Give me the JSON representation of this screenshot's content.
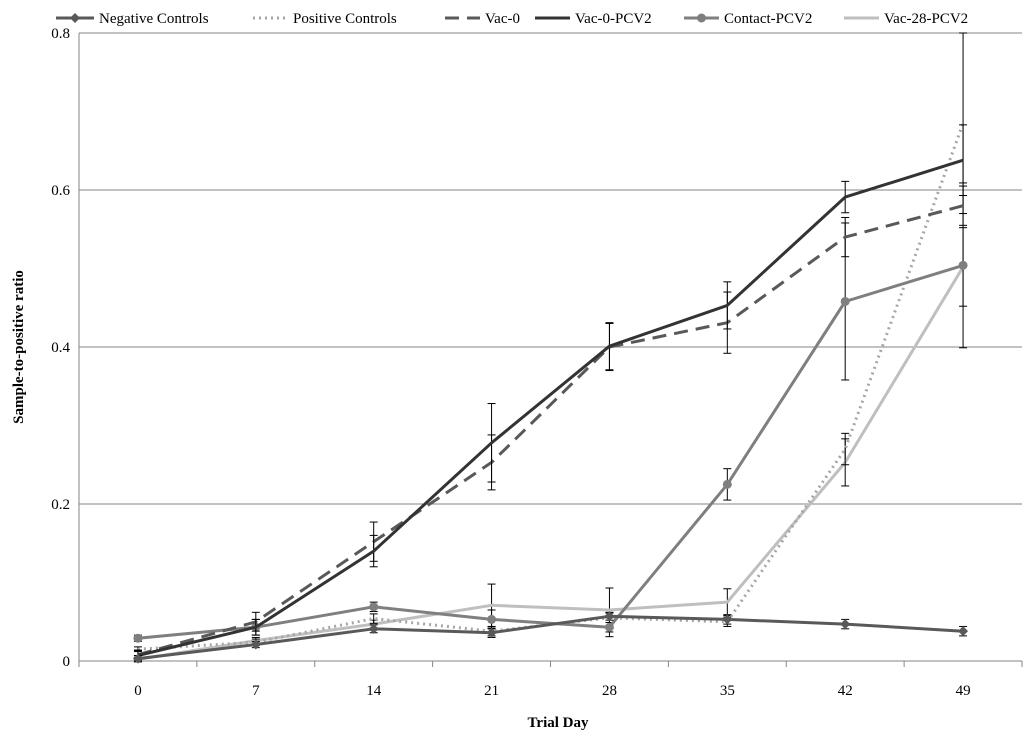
{
  "chart_data": {
    "type": "line",
    "title": "",
    "xlabel": "Trial Day",
    "ylabel": "Sample-to-positive ratio",
    "x": [
      0,
      7,
      14,
      21,
      28,
      35,
      42,
      49
    ],
    "x_tick_labels": [
      "0",
      "7",
      "14",
      "21",
      "28",
      "35",
      "42",
      "49"
    ],
    "y_tick_labels": [
      "0",
      "0.2",
      "0.4",
      "0.6",
      "0.8"
    ],
    "ylim": [
      0,
      0.8
    ],
    "grid": "horizontal",
    "legend_position": "top",
    "series": [
      {
        "name": "Negative Controls",
        "color": "#595959",
        "style": "solid-diamond",
        "values": [
          0.003,
          0.021,
          0.041,
          0.036,
          0.057,
          0.053,
          0.047,
          0.038
        ],
        "errors": [
          0.004,
          0.004,
          0.005,
          0.006,
          0.005,
          0.006,
          0.006,
          0.006
        ]
      },
      {
        "name": "Positive Controls",
        "color": "#a6a6a6",
        "style": "dotted",
        "values": [
          0.015,
          0.024,
          0.054,
          0.038,
          0.055,
          0.05,
          0.27,
          0.685
        ],
        "errors": [
          0.003,
          0.004,
          0.006,
          0.006,
          0.006,
          0.006,
          0.02,
          0.115
        ]
      },
      {
        "name": "Vac-0",
        "color": "#595959",
        "style": "dashed",
        "values": [
          0.008,
          0.05,
          0.152,
          0.253,
          0.4,
          0.431,
          0.54,
          0.58
        ],
        "errors": [
          0.006,
          0.012,
          0.025,
          0.035,
          0.03,
          0.039,
          0.025,
          0.025
        ]
      },
      {
        "name": "Vac-0-PCV2",
        "color": "#333333",
        "style": "solid",
        "values": [
          0.007,
          0.043,
          0.14,
          0.278,
          0.401,
          0.453,
          0.591,
          0.638
        ],
        "errors": [
          0.006,
          0.01,
          0.02,
          0.05,
          0.03,
          0.03,
          0.02,
          0.045
        ]
      },
      {
        "name": "Contact-PCV2",
        "color": "#7f7f7f",
        "style": "solid-circle",
        "values": [
          0.029,
          0.043,
          0.069,
          0.053,
          0.043,
          0.225,
          0.458,
          0.504
        ],
        "errors": [
          0.004,
          0.01,
          0.006,
          0.012,
          0.012,
          0.02,
          0.1,
          0.105
        ]
      },
      {
        "name": "Vac-28-PCV2",
        "color": "#bfbfbf",
        "style": "solid",
        "values": [
          0.002,
          0.026,
          0.047,
          0.071,
          0.065,
          0.075,
          0.253,
          0.502
        ],
        "errors": [
          0.003,
          0.004,
          0.005,
          0.027,
          0.028,
          0.017,
          0.03,
          0.05
        ]
      }
    ]
  }
}
